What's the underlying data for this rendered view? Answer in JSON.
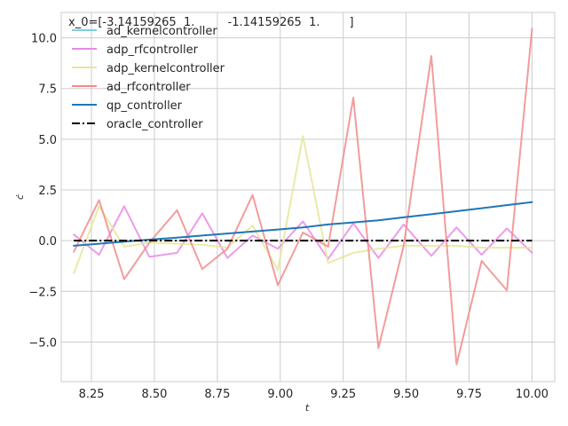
{
  "chart_data": {
    "type": "line",
    "title": "x_0=[-3.14159265  1.         -1.14159265  1.        ]",
    "xlabel": "t",
    "ylabel": "ċ",
    "xlim": [
      8.13,
      10.09
    ],
    "ylim": [
      -6.95,
      11.25
    ],
    "xticks": [
      8.25,
      8.5,
      8.75,
      9.0,
      9.25,
      9.5,
      9.75,
      10.0
    ],
    "xtick_labels": [
      "8.25",
      "8.50",
      "8.75",
      "9.00",
      "9.25",
      "9.50",
      "9.75",
      "10.00"
    ],
    "yticks": [
      -5.0,
      -2.5,
      0.0,
      2.5,
      5.0,
      7.5,
      10.0
    ],
    "ytick_labels": [
      "−5.0",
      "−2.5",
      "0.0",
      "2.5",
      "5.0",
      "7.5",
      "10.0"
    ],
    "grid": true,
    "legend_position": "top-left",
    "x": [
      8.18,
      8.28,
      8.38,
      8.48,
      8.59,
      8.69,
      8.79,
      8.89,
      8.99,
      9.09,
      9.19,
      9.29,
      9.39,
      9.49,
      9.6,
      9.7,
      9.8,
      9.9,
      10.0
    ],
    "series": [
      {
        "name": "ad_kernelcontroller",
        "color": "#7fcfe0",
        "style": "solid",
        "values": [
          null,
          null,
          null,
          null,
          null,
          null,
          null,
          null,
          null,
          null,
          null,
          null,
          null,
          null,
          null,
          null,
          null,
          null,
          null
        ]
      },
      {
        "name": "adp_rfcontroller",
        "color": "#e68ce6",
        "style": "solid",
        "values": [
          0.3,
          -0.7,
          1.7,
          -0.8,
          -0.6,
          1.35,
          -0.85,
          0.25,
          -0.4,
          0.95,
          -0.9,
          0.85,
          -0.85,
          0.8,
          -0.75,
          0.65,
          -0.7,
          0.6,
          -0.6
        ]
      },
      {
        "name": "adp_kernelcontroller",
        "color": "#e6e699",
        "style": "solid",
        "values": [
          -1.6,
          1.7,
          -0.3,
          -0.1,
          -0.15,
          -0.2,
          -0.35,
          0.75,
          -1.45,
          5.15,
          -1.1,
          -0.6,
          -0.4,
          -0.25,
          -0.25,
          -0.25,
          -0.35,
          -0.35,
          -0.35
        ]
      },
      {
        "name": "ad_rfcontroller",
        "color": "#f28b8b",
        "style": "solid",
        "values": [
          -0.55,
          2.0,
          -1.9,
          -0.1,
          1.5,
          -1.4,
          -0.4,
          2.25,
          -2.2,
          0.4,
          -0.3,
          7.05,
          -5.3,
          -0.25,
          9.1,
          -6.1,
          -1.0,
          -2.45,
          10.45
        ]
      },
      {
        "name": "qp_controller",
        "color": "#1f77b4",
        "style": "solid",
        "values": [
          -0.25,
          -0.15,
          -0.05,
          0.05,
          0.15,
          0.25,
          0.35,
          0.45,
          0.55,
          0.65,
          0.8,
          0.9,
          1.0,
          1.15,
          1.3,
          1.45,
          1.6,
          1.75,
          1.9
        ]
      },
      {
        "name": "oracle_controller",
        "color": "#000000",
        "style": "dashdot",
        "values": [
          0.0,
          0.0,
          0.0,
          0.0,
          0.0,
          0.0,
          0.0,
          0.0,
          0.0,
          0.0,
          0.0,
          0.0,
          0.0,
          0.0,
          0.0,
          0.0,
          0.0,
          0.0,
          0.0
        ]
      }
    ]
  }
}
